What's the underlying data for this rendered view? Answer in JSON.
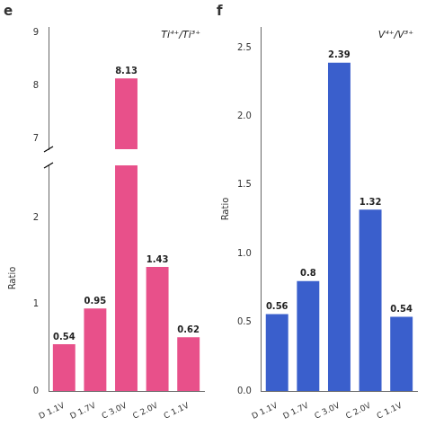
{
  "chart_data": [
    {
      "type": "bar",
      "title": "e",
      "categories": [
        "D 1.1V",
        "D 1.7V",
        "C 3.0V",
        "C 2.0V",
        "C 1.1V"
      ],
      "values": [
        0.54,
        0.95,
        8.13,
        1.43,
        0.62
      ],
      "ylabel": "Ratio",
      "annotation": "Ti⁴⁺/Ti³⁺",
      "color": "#e8508a",
      "ylim": [
        [
          0,
          2.6
        ],
        [
          6.8,
          9.1
        ]
      ],
      "yticks": [
        [
          0,
          1,
          2
        ],
        [
          7,
          8,
          9
        ]
      ],
      "data_labels": true,
      "grid": false
    },
    {
      "type": "bar",
      "title": "f",
      "categories": [
        "D 1.1V",
        "D 1.7V",
        "C 3.0V",
        "C 2.0V",
        "C 1.1V"
      ],
      "values": [
        0.56,
        0.8,
        2.39,
        1.32,
        0.54
      ],
      "ylabel": "Ratio",
      "annotation": "V⁴⁺/V³⁺",
      "color": "#3a5fcc",
      "ylim": [
        0.0,
        2.65
      ],
      "yticks": [
        {
          "value": 0,
          "label": "0.0"
        },
        0.5,
        {
          "value": 1,
          "label": "1.0"
        },
        1.5,
        {
          "value": 2,
          "label": "2.0"
        },
        2.5
      ],
      "data_labels": true,
      "grid": false
    }
  ]
}
